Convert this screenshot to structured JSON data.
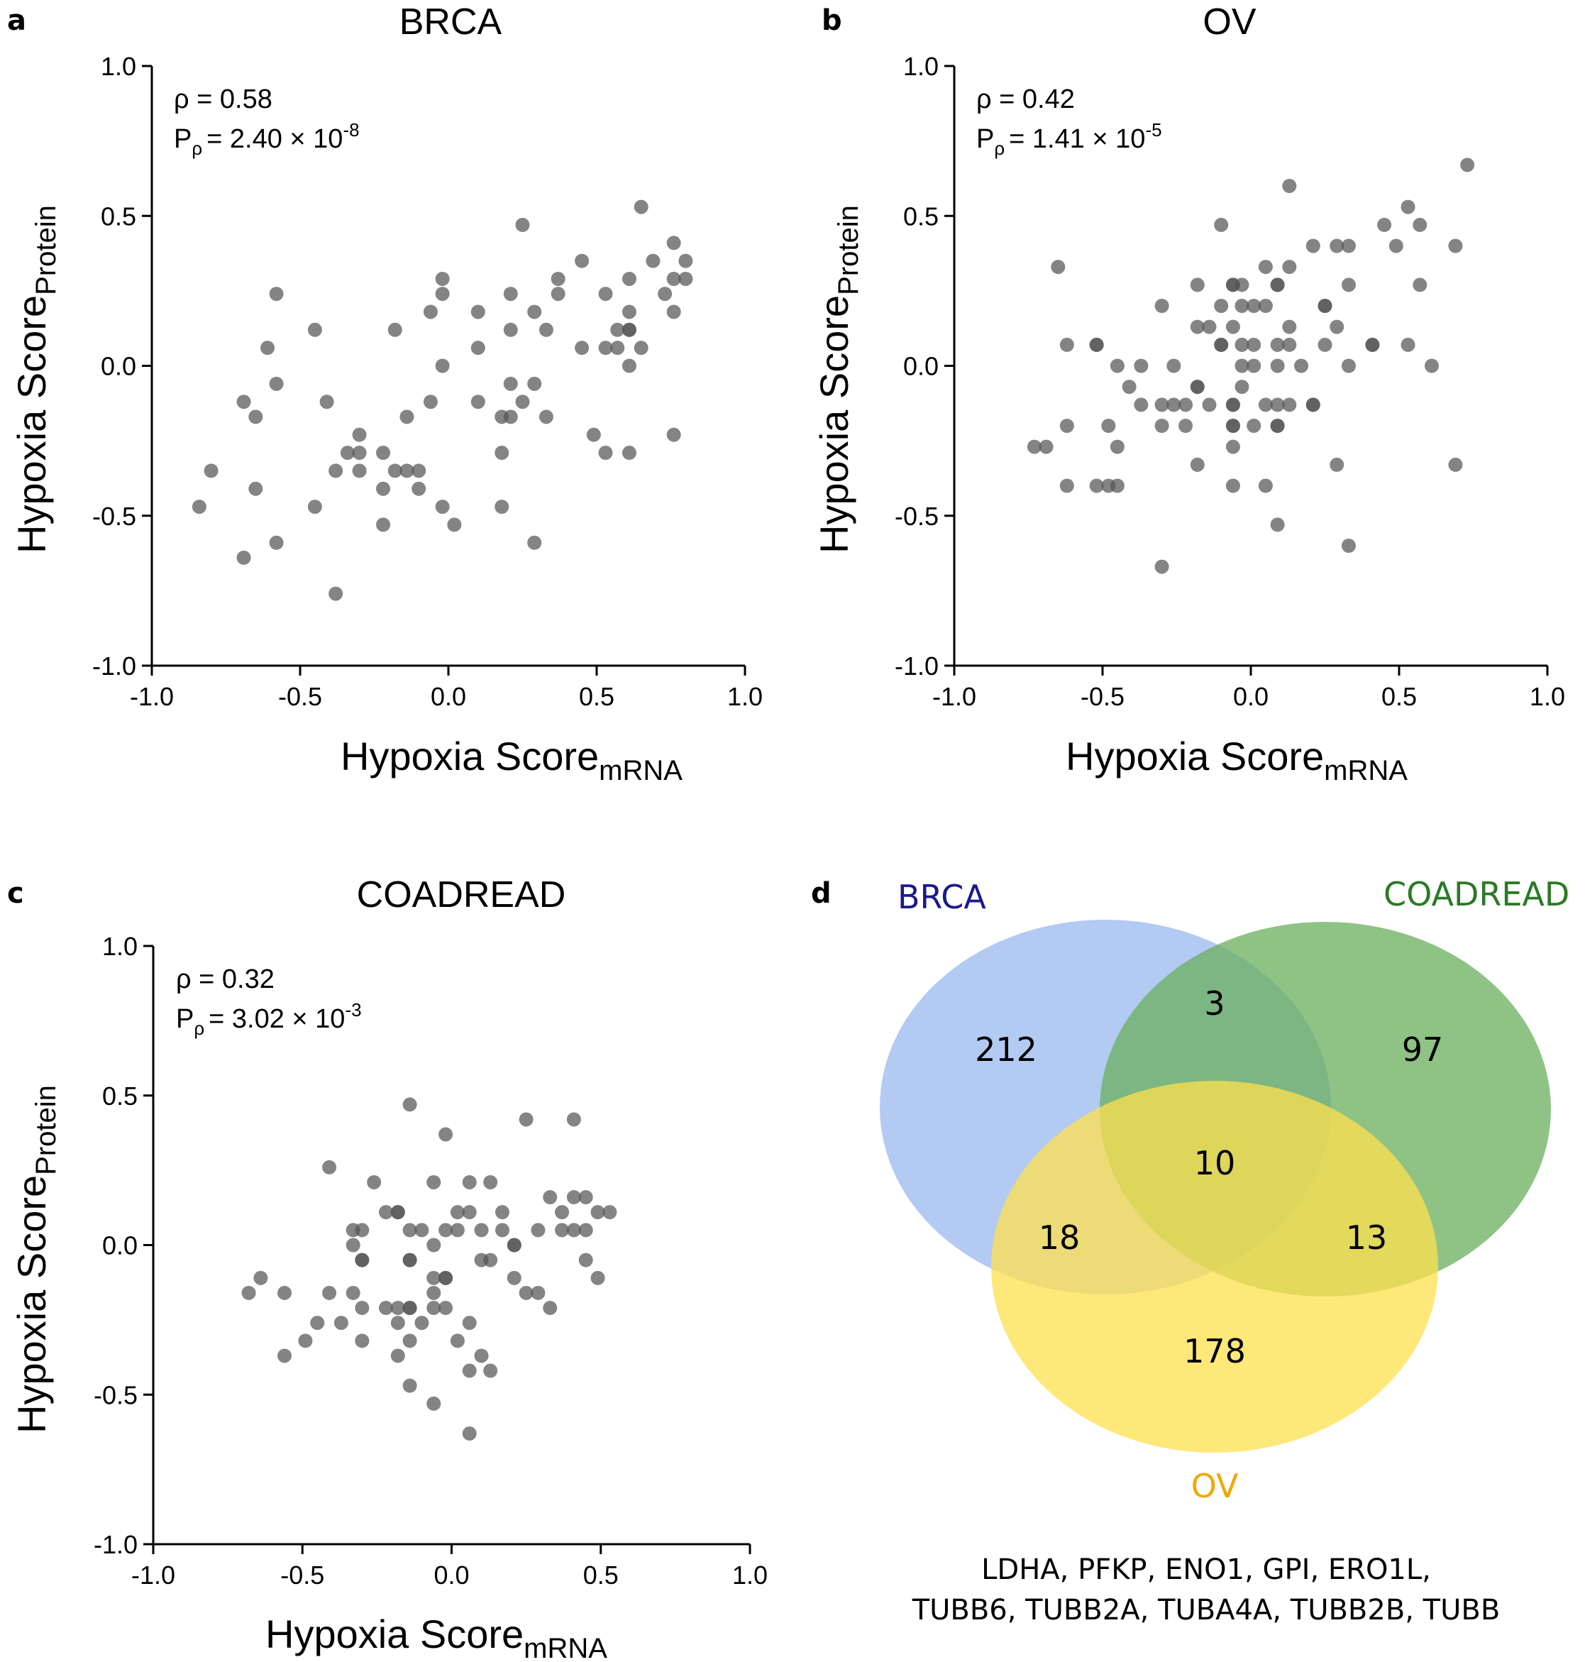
{
  "chart_data": [
    {
      "type": "scatter",
      "panel": "a",
      "title": "BRCA",
      "xlabel": "Hypoxia Score",
      "xlabel_sub": "mRNA",
      "ylabel": "Hypoxia Score",
      "ylabel_sub": "Protein",
      "xlim": [
        -1.0,
        1.0
      ],
      "ylim": [
        -1.0,
        1.0
      ],
      "xticks": [
        "-1.0",
        "-0.5",
        "0.0",
        "0.5",
        "1.0"
      ],
      "yticks": [
        "1.0",
        "0.5",
        "0.0",
        "-0.5",
        "-1.0"
      ],
      "stat_rho": "ρ = 0.58",
      "stat_p_prefix": "P",
      "stat_p_sub": "ρ",
      "stat_p_value": "= 2.40 × 10",
      "stat_p_exp": "-8",
      "points": [
        [
          -0.84,
          -0.47
        ],
        [
          -0.8,
          -0.35
        ],
        [
          -0.69,
          -0.64
        ],
        [
          -0.69,
          -0.12
        ],
        [
          -0.65,
          -0.41
        ],
        [
          -0.65,
          -0.17
        ],
        [
          -0.61,
          0.06
        ],
        [
          -0.58,
          0.24
        ],
        [
          -0.58,
          -0.06
        ],
        [
          -0.58,
          -0.59
        ],
        [
          -0.45,
          0.12
        ],
        [
          -0.45,
          -0.47
        ],
        [
          -0.41,
          -0.12
        ],
        [
          -0.38,
          -0.76
        ],
        [
          -0.38,
          -0.35
        ],
        [
          -0.34,
          -0.29
        ],
        [
          -0.3,
          -0.23
        ],
        [
          -0.3,
          -0.29
        ],
        [
          -0.3,
          -0.35
        ],
        [
          -0.22,
          -0.29
        ],
        [
          -0.22,
          -0.41
        ],
        [
          -0.22,
          -0.53
        ],
        [
          -0.18,
          0.12
        ],
        [
          -0.18,
          -0.35
        ],
        [
          -0.14,
          -0.35
        ],
        [
          -0.14,
          -0.17
        ],
        [
          -0.1,
          -0.41
        ],
        [
          -0.1,
          -0.35
        ],
        [
          -0.06,
          0.18
        ],
        [
          -0.06,
          -0.12
        ],
        [
          -0.02,
          0.29
        ],
        [
          -0.02,
          0.24
        ],
        [
          -0.02,
          0.0
        ],
        [
          -0.02,
          -0.47
        ],
        [
          0.02,
          -0.53
        ],
        [
          0.1,
          0.18
        ],
        [
          0.1,
          0.06
        ],
        [
          0.1,
          -0.12
        ],
        [
          0.18,
          -0.17
        ],
        [
          0.18,
          -0.29
        ],
        [
          0.18,
          -0.47
        ],
        [
          0.21,
          0.24
        ],
        [
          0.21,
          0.12
        ],
        [
          0.21,
          -0.06
        ],
        [
          0.21,
          -0.17
        ],
        [
          0.25,
          0.47
        ],
        [
          0.25,
          -0.12
        ],
        [
          0.29,
          0.18
        ],
        [
          0.29,
          -0.06
        ],
        [
          0.29,
          -0.59
        ],
        [
          0.33,
          0.12
        ],
        [
          0.33,
          -0.17
        ],
        [
          0.37,
          0.29
        ],
        [
          0.37,
          0.24
        ],
        [
          0.45,
          0.35
        ],
        [
          0.45,
          0.06
        ],
        [
          0.49,
          -0.23
        ],
        [
          0.53,
          0.24
        ],
        [
          0.53,
          0.06
        ],
        [
          0.53,
          -0.29
        ],
        [
          0.57,
          0.12
        ],
        [
          0.57,
          0.06
        ],
        [
          0.61,
          0.29
        ],
        [
          0.61,
          0.18
        ],
        [
          0.61,
          0.12
        ],
        [
          0.61,
          0.12
        ],
        [
          0.61,
          0.0
        ],
        [
          0.61,
          -0.29
        ],
        [
          0.65,
          0.53
        ],
        [
          0.65,
          0.06
        ],
        [
          0.69,
          0.35
        ],
        [
          0.73,
          0.24
        ],
        [
          0.76,
          0.41
        ],
        [
          0.76,
          0.29
        ],
        [
          0.76,
          0.18
        ],
        [
          0.76,
          -0.23
        ],
        [
          0.8,
          0.35
        ],
        [
          0.8,
          0.29
        ]
      ]
    },
    {
      "type": "scatter",
      "panel": "b",
      "title": "OV",
      "xlabel": "Hypoxia Score",
      "xlabel_sub": "mRNA",
      "ylabel": "Hypoxia Score",
      "ylabel_sub": "Protein",
      "xlim": [
        -1.0,
        1.0
      ],
      "ylim": [
        -1.0,
        1.0
      ],
      "xticks": [
        "-1.0",
        "-0.5",
        "0.0",
        "0.5",
        "1.0"
      ],
      "yticks": [
        "1.0",
        "0.5",
        "0.0",
        "-0.5",
        "-1.0"
      ],
      "stat_rho": "ρ = 0.42",
      "stat_p_prefix": "P",
      "stat_p_sub": "ρ",
      "stat_p_value": "= 1.41 × 10",
      "stat_p_exp": "-5",
      "points": [
        [
          -0.73,
          -0.27
        ],
        [
          -0.69,
          -0.27
        ],
        [
          -0.65,
          0.33
        ],
        [
          -0.62,
          0.07
        ],
        [
          -0.62,
          -0.2
        ],
        [
          -0.62,
          -0.4
        ],
        [
          -0.52,
          0.07
        ],
        [
          -0.52,
          0.07
        ],
        [
          -0.52,
          -0.4
        ],
        [
          -0.48,
          -0.2
        ],
        [
          -0.48,
          -0.4
        ],
        [
          -0.45,
          -0.27
        ],
        [
          -0.45,
          -0.4
        ],
        [
          -0.45,
          0.0
        ],
        [
          -0.41,
          -0.07
        ],
        [
          -0.37,
          0.0
        ],
        [
          -0.37,
          -0.13
        ],
        [
          -0.3,
          0.2
        ],
        [
          -0.3,
          -0.13
        ],
        [
          -0.3,
          -0.2
        ],
        [
          -0.3,
          -0.67
        ],
        [
          -0.26,
          -0.13
        ],
        [
          -0.26,
          0.0
        ],
        [
          -0.22,
          -0.13
        ],
        [
          -0.22,
          -0.2
        ],
        [
          -0.18,
          0.27
        ],
        [
          -0.18,
          -0.07
        ],
        [
          -0.18,
          -0.07
        ],
        [
          -0.18,
          -0.33
        ],
        [
          -0.18,
          0.13
        ],
        [
          -0.14,
          0.13
        ],
        [
          -0.14,
          -0.13
        ],
        [
          -0.1,
          0.2
        ],
        [
          -0.1,
          0.07
        ],
        [
          -0.1,
          0.07
        ],
        [
          -0.1,
          0.47
        ],
        [
          -0.06,
          0.27
        ],
        [
          -0.06,
          0.27
        ],
        [
          -0.06,
          0.13
        ],
        [
          -0.06,
          -0.13
        ],
        [
          -0.06,
          -0.13
        ],
        [
          -0.06,
          -0.2
        ],
        [
          -0.06,
          -0.2
        ],
        [
          -0.06,
          -0.27
        ],
        [
          -0.06,
          -0.4
        ],
        [
          -0.03,
          0.2
        ],
        [
          -0.03,
          0.07
        ],
        [
          -0.03,
          0.0
        ],
        [
          -0.03,
          0.27
        ],
        [
          -0.03,
          -0.07
        ],
        [
          0.01,
          0.2
        ],
        [
          0.01,
          0.07
        ],
        [
          0.01,
          0.0
        ],
        [
          0.01,
          -0.2
        ],
        [
          0.05,
          0.33
        ],
        [
          0.05,
          0.2
        ],
        [
          0.05,
          -0.13
        ],
        [
          0.05,
          -0.4
        ],
        [
          0.09,
          0.27
        ],
        [
          0.09,
          0.27
        ],
        [
          0.09,
          0.07
        ],
        [
          0.09,
          0.0
        ],
        [
          0.09,
          -0.13
        ],
        [
          0.09,
          -0.2
        ],
        [
          0.09,
          -0.2
        ],
        [
          0.09,
          -0.53
        ],
        [
          0.13,
          0.6
        ],
        [
          0.13,
          0.33
        ],
        [
          0.13,
          0.13
        ],
        [
          0.13,
          0.07
        ],
        [
          0.13,
          -0.13
        ],
        [
          0.17,
          0.0
        ],
        [
          0.21,
          0.4
        ],
        [
          0.21,
          -0.13
        ],
        [
          0.21,
          -0.13
        ],
        [
          0.25,
          0.2
        ],
        [
          0.25,
          0.2
        ],
        [
          0.25,
          0.07
        ],
        [
          0.29,
          0.13
        ],
        [
          0.29,
          -0.33
        ],
        [
          0.29,
          0.4
        ],
        [
          0.33,
          0.4
        ],
        [
          0.33,
          0.27
        ],
        [
          0.33,
          0.0
        ],
        [
          0.33,
          -0.6
        ],
        [
          0.41,
          0.07
        ],
        [
          0.41,
          0.07
        ],
        [
          0.45,
          0.47
        ],
        [
          0.49,
          0.4
        ],
        [
          0.53,
          0.53
        ],
        [
          0.53,
          0.07
        ],
        [
          0.57,
          0.47
        ],
        [
          0.57,
          0.27
        ],
        [
          0.61,
          0.0
        ],
        [
          0.69,
          0.4
        ],
        [
          0.69,
          -0.33
        ],
        [
          0.73,
          0.67
        ]
      ]
    },
    {
      "type": "scatter",
      "panel": "c",
      "title": "COADREAD",
      "xlabel": "Hypoxia Score",
      "xlabel_sub": "mRNA",
      "ylabel": "Hypoxia Score",
      "ylabel_sub": "Protein",
      "xlim": [
        -1.0,
        1.0
      ],
      "ylim": [
        -1.0,
        1.0
      ],
      "xticks": [
        "-1.0",
        "-0.5",
        "0.0",
        "0.5",
        "1.0"
      ],
      "yticks": [
        "1.0",
        "0.5",
        "0.0",
        "-0.5",
        "-1.0"
      ],
      "stat_rho": "ρ = 0.32",
      "stat_p_prefix": "P",
      "stat_p_sub": "ρ",
      "stat_p_value": "= 3.02 × 10",
      "stat_p_exp": "-3",
      "points": [
        [
          -0.68,
          -0.16
        ],
        [
          -0.64,
          -0.11
        ],
        [
          -0.56,
          -0.16
        ],
        [
          -0.56,
          -0.37
        ],
        [
          -0.49,
          -0.32
        ],
        [
          -0.45,
          -0.26
        ],
        [
          -0.41,
          0.26
        ],
        [
          -0.41,
          -0.16
        ],
        [
          -0.37,
          -0.26
        ],
        [
          -0.33,
          0.05
        ],
        [
          -0.33,
          0.0
        ],
        [
          -0.33,
          -0.16
        ],
        [
          -0.3,
          0.05
        ],
        [
          -0.3,
          -0.05
        ],
        [
          -0.3,
          -0.05
        ],
        [
          -0.3,
          -0.21
        ],
        [
          -0.3,
          -0.32
        ],
        [
          -0.26,
          0.21
        ],
        [
          -0.22,
          0.11
        ],
        [
          -0.22,
          -0.21
        ],
        [
          -0.18,
          0.11
        ],
        [
          -0.18,
          0.11
        ],
        [
          -0.18,
          -0.21
        ],
        [
          -0.18,
          -0.26
        ],
        [
          -0.18,
          -0.37
        ],
        [
          -0.14,
          0.47
        ],
        [
          -0.14,
          0.05
        ],
        [
          -0.14,
          -0.05
        ],
        [
          -0.14,
          -0.05
        ],
        [
          -0.14,
          -0.21
        ],
        [
          -0.14,
          -0.21
        ],
        [
          -0.14,
          -0.32
        ],
        [
          -0.14,
          -0.47
        ],
        [
          -0.1,
          0.05
        ],
        [
          -0.1,
          -0.26
        ],
        [
          -0.06,
          0.21
        ],
        [
          -0.06,
          0.0
        ],
        [
          -0.06,
          -0.11
        ],
        [
          -0.06,
          -0.16
        ],
        [
          -0.06,
          -0.21
        ],
        [
          -0.06,
          -0.53
        ],
        [
          -0.02,
          0.37
        ],
        [
          -0.02,
          0.05
        ],
        [
          -0.02,
          -0.11
        ],
        [
          -0.02,
          -0.11
        ],
        [
          -0.02,
          -0.21
        ],
        [
          0.02,
          0.11
        ],
        [
          0.02,
          0.05
        ],
        [
          0.02,
          -0.32
        ],
        [
          0.06,
          0.21
        ],
        [
          0.06,
          0.11
        ],
        [
          0.06,
          -0.26
        ],
        [
          0.06,
          -0.42
        ],
        [
          0.06,
          -0.63
        ],
        [
          0.1,
          0.05
        ],
        [
          0.1,
          -0.05
        ],
        [
          0.1,
          -0.37
        ],
        [
          0.13,
          0.21
        ],
        [
          0.13,
          -0.05
        ],
        [
          0.13,
          -0.42
        ],
        [
          0.17,
          0.11
        ],
        [
          0.17,
          0.05
        ],
        [
          0.21,
          0.0
        ],
        [
          0.21,
          0.0
        ],
        [
          0.21,
          -0.11
        ],
        [
          0.25,
          0.42
        ],
        [
          0.25,
          -0.16
        ],
        [
          0.29,
          0.05
        ],
        [
          0.29,
          -0.16
        ],
        [
          0.33,
          0.16
        ],
        [
          0.33,
          -0.21
        ],
        [
          0.37,
          0.11
        ],
        [
          0.37,
          0.05
        ],
        [
          0.41,
          0.42
        ],
        [
          0.41,
          0.16
        ],
        [
          0.41,
          0.05
        ],
        [
          0.45,
          0.16
        ],
        [
          0.45,
          0.05
        ],
        [
          0.45,
          -0.05
        ],
        [
          0.49,
          0.11
        ],
        [
          0.49,
          -0.11
        ],
        [
          0.53,
          0.11
        ]
      ]
    },
    {
      "type": "venn",
      "panel": "d",
      "sets": [
        {
          "name": "BRCA",
          "color": "#99b8ee",
          "label_color": "#1a1a8c"
        },
        {
          "name": "COADREAD",
          "color": "#6aaf5e",
          "label_color": "#2a7a24"
        },
        {
          "name": "OV",
          "color": "#ffe04d",
          "label_color": "#f0a800"
        }
      ],
      "regions": {
        "BRCA_only": "212",
        "COADREAD_only": "97",
        "OV_only": "178",
        "BRCA_COADREAD": "3",
        "BRCA_OV": "18",
        "COADREAD_OV": "13",
        "all": "10"
      },
      "shared_genes_line1": "LDHA, PFKP, ENO1, GPI, ERO1L,",
      "shared_genes_line2": "TUBB6, TUBB2A, TUBA4A, TUBB2B, TUBB"
    }
  ],
  "marker_color": "#555555"
}
